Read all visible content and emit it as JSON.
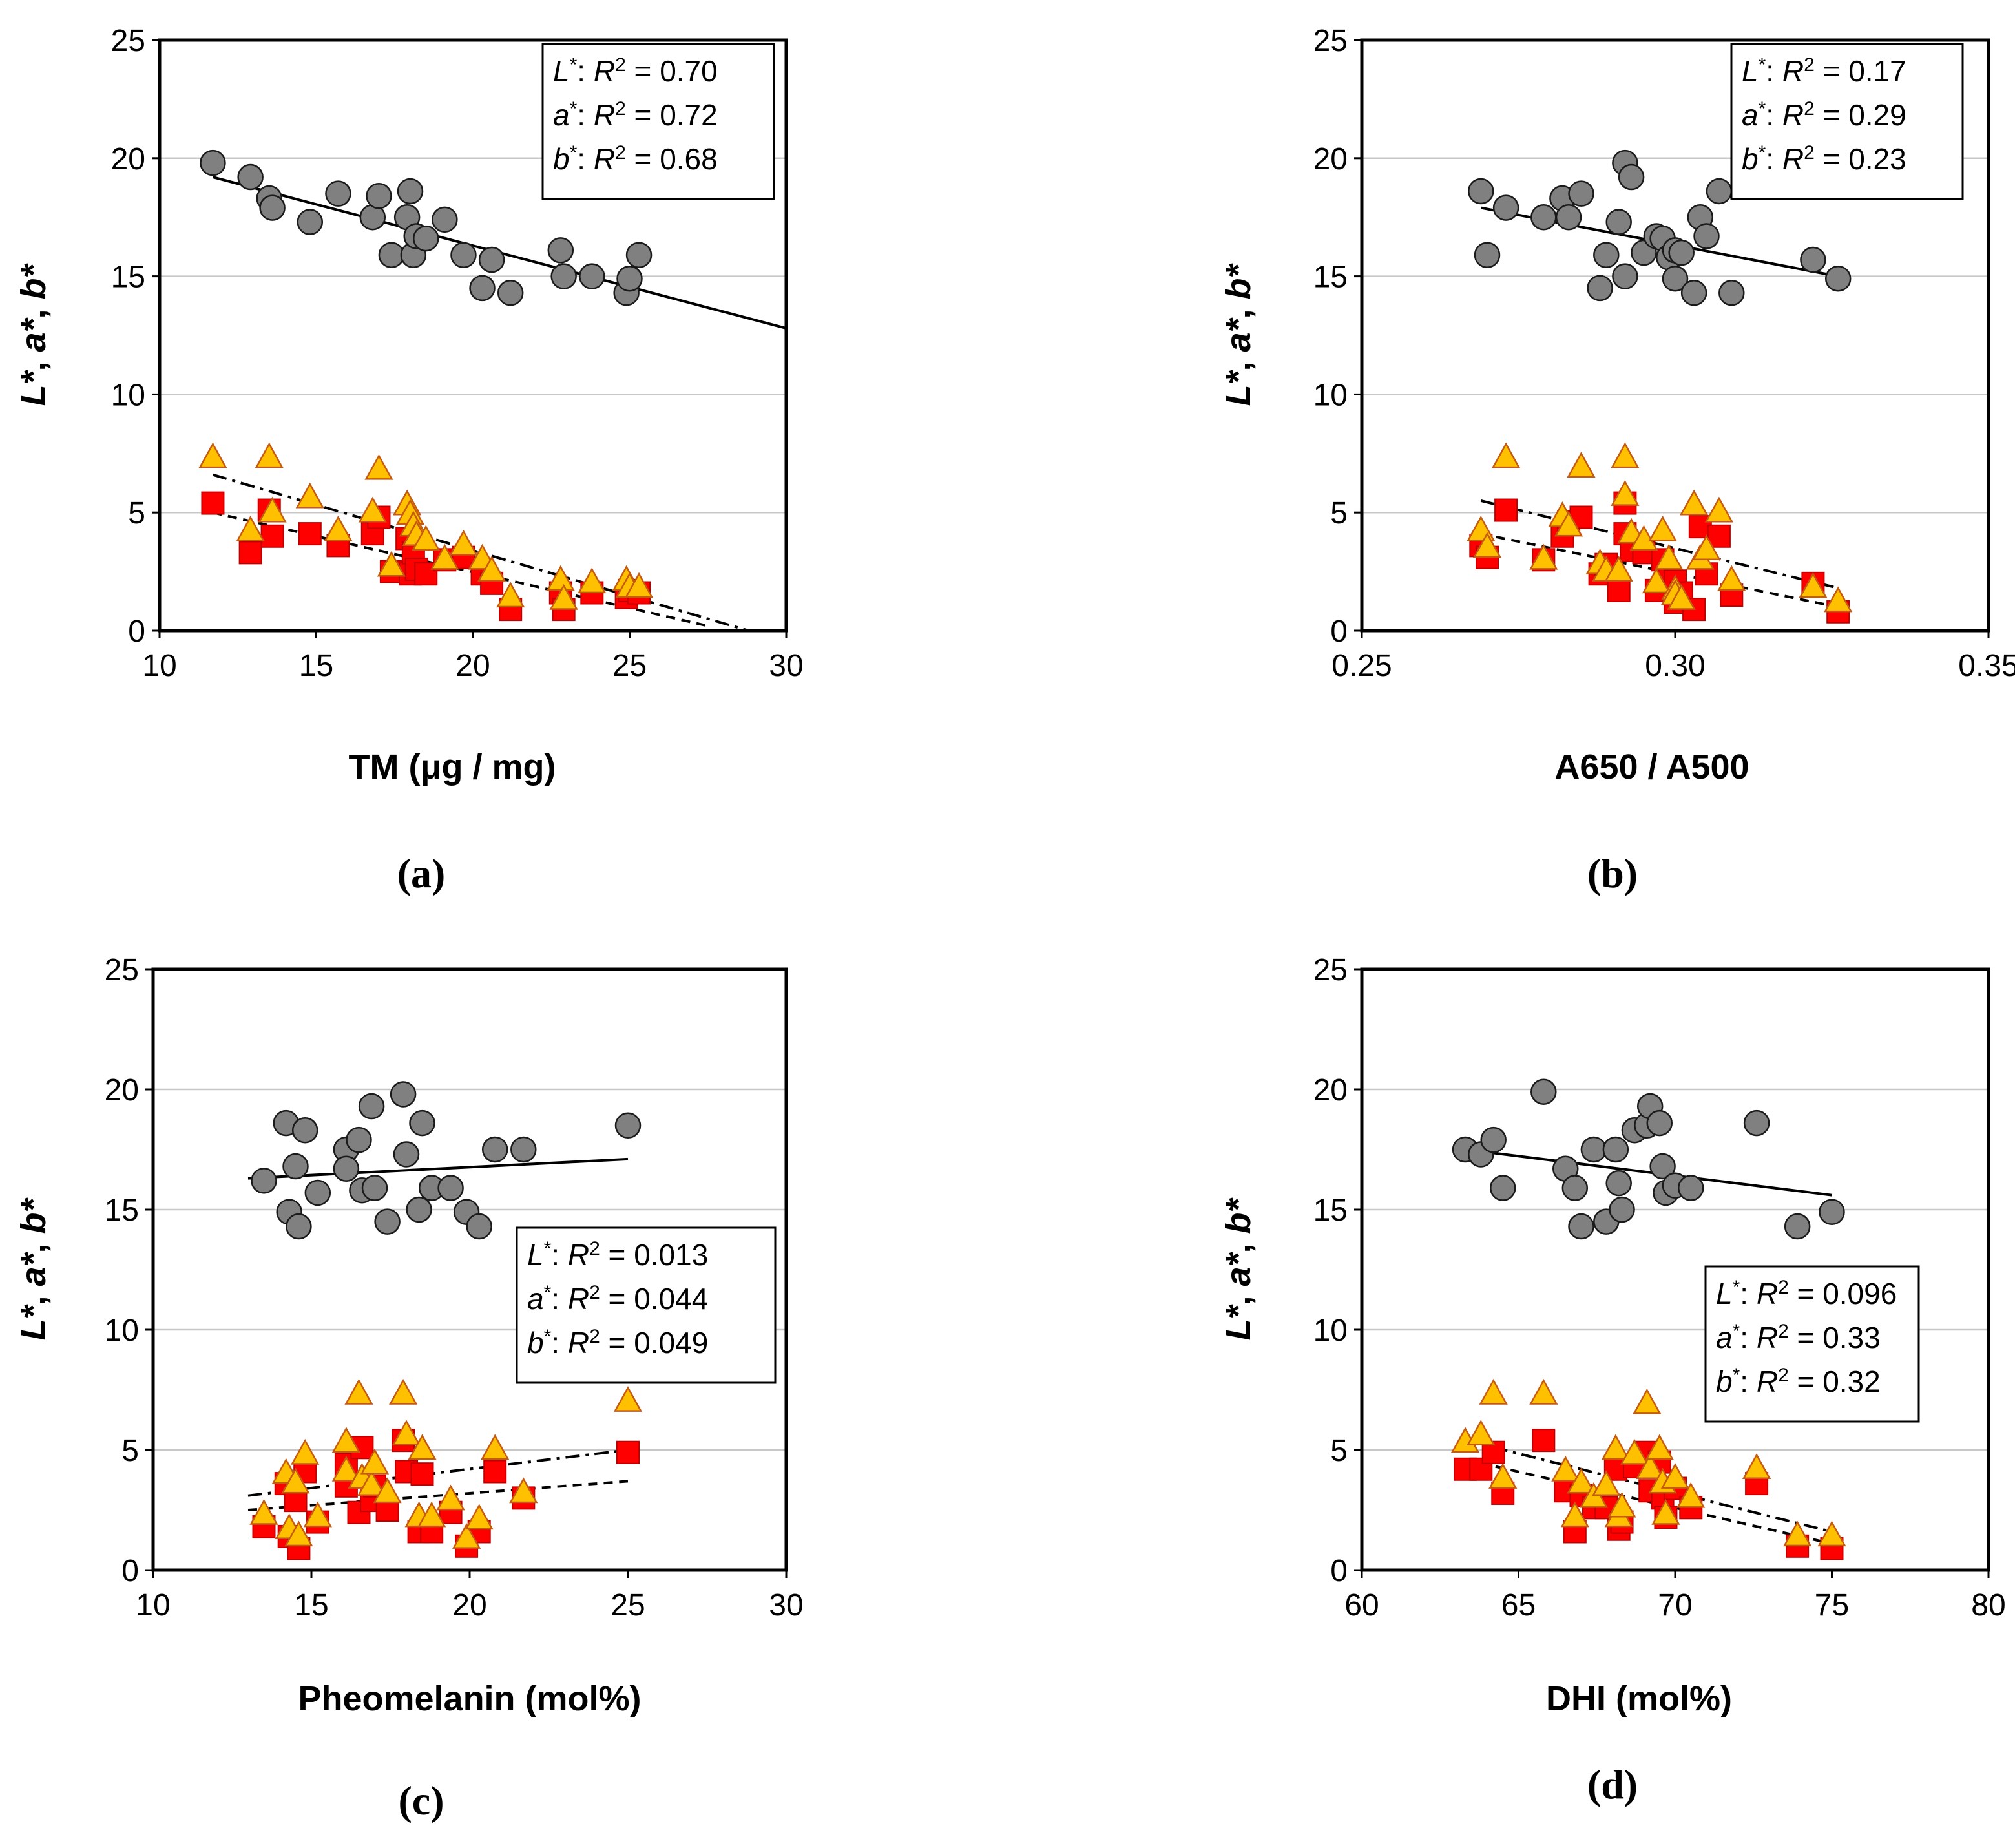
{
  "chart_data": [
    {
      "type": "scatter",
      "panel_label": "(a)",
      "xlabel": "TM (μg / mg)",
      "ylabel": [
        "L*",
        ", ",
        "a*",
        ", ",
        "b*"
      ],
      "xlim": [
        10,
        30
      ],
      "ylim": [
        0,
        25
      ],
      "xticks": [
        "10",
        "15",
        "20",
        "25",
        "30"
      ],
      "yticks": [
        "0",
        "5",
        "10",
        "15",
        "20",
        "25"
      ],
      "legend": [
        {
          "var": "L",
          "r2": "0.70"
        },
        {
          "var": "a",
          "r2": "0.72"
        },
        {
          "var": "b",
          "r2": "0.68"
        }
      ],
      "legend_pos": "top-right",
      "series": [
        {
          "name": "L*",
          "marker": "circle",
          "color": "#808080",
          "x": [
            11.7,
            12.9,
            13.5,
            13.6,
            14.8,
            15.7,
            16.8,
            17.0,
            17.4,
            17.9,
            18.0,
            18.1,
            18.2,
            18.5,
            19.1,
            19.7,
            20.3,
            20.6,
            21.2,
            22.8,
            22.9,
            23.8,
            24.9,
            25.0,
            25.3
          ],
          "y": [
            19.8,
            19.2,
            18.3,
            17.9,
            17.3,
            18.5,
            17.5,
            18.4,
            15.9,
            17.5,
            18.6,
            15.9,
            16.7,
            16.6,
            17.4,
            15.9,
            14.5,
            15.7,
            14.3,
            16.1,
            15.0,
            15.0,
            14.3,
            14.9,
            15.9
          ],
          "fit": [
            [
              11.7,
              19.2
            ],
            [
              30,
              12.8
            ]
          ],
          "fit_style": "solid"
        },
        {
          "name": "a*",
          "marker": "square",
          "color": "#ff0000",
          "x": [
            11.7,
            12.9,
            13.5,
            13.6,
            14.8,
            15.7,
            16.8,
            17.0,
            17.4,
            17.9,
            18.0,
            18.1,
            18.2,
            18.5,
            19.1,
            19.7,
            20.3,
            20.6,
            21.2,
            22.8,
            22.9,
            23.8,
            24.9,
            25.0,
            25.3
          ],
          "y": [
            5.4,
            3.3,
            5.1,
            4.0,
            4.1,
            3.6,
            4.1,
            4.8,
            2.5,
            3.9,
            2.4,
            3.3,
            2.6,
            2.4,
            3.0,
            3.1,
            2.4,
            2.0,
            0.9,
            1.6,
            0.9,
            1.6,
            1.4,
            1.7,
            1.6
          ],
          "fit": [
            [
              11.7,
              5.0
            ],
            [
              27.5,
              0.2
            ]
          ],
          "fit_style": "dashed"
        },
        {
          "name": "b*",
          "marker": "triangle",
          "color": "#ffc000",
          "x": [
            11.7,
            12.9,
            13.5,
            13.6,
            14.8,
            15.7,
            16.8,
            17.0,
            17.4,
            17.9,
            18.0,
            18.1,
            18.2,
            18.5,
            19.1,
            19.7,
            20.3,
            20.6,
            21.2,
            22.8,
            22.9,
            23.8,
            24.9,
            25.0,
            25.3
          ],
          "y": [
            7.3,
            4.2,
            7.3,
            5.0,
            5.6,
            4.2,
            5.0,
            6.8,
            2.7,
            5.3,
            4.9,
            4.4,
            4.0,
            3.8,
            3.0,
            3.6,
            3.0,
            2.5,
            1.4,
            2.1,
            1.3,
            2.0,
            2.1,
            1.8,
            1.8
          ],
          "fit": [
            [
              11.7,
              6.6
            ],
            [
              28.8,
              0
            ]
          ],
          "fit_style": "dashdot"
        }
      ]
    },
    {
      "type": "scatter",
      "panel_label": "(b)",
      "xlabel": "A650 / A500",
      "ylabel": [
        "L*",
        ", ",
        "a*",
        ", ",
        "b*"
      ],
      "xlim": [
        0.25,
        0.35
      ],
      "ylim": [
        0,
        25
      ],
      "xticks": [
        "0.25",
        "0.30",
        "0.35"
      ],
      "yticks": [
        "0",
        "5",
        "10",
        "15",
        "20",
        "25"
      ],
      "legend": [
        {
          "var": "L",
          "r2": "0.17"
        },
        {
          "var": "a",
          "r2": "0.29"
        },
        {
          "var": "b",
          "r2": "0.23"
        }
      ],
      "legend_pos": "top-right",
      "series": [
        {
          "name": "L*",
          "marker": "circle",
          "color": "#808080",
          "x": [
            0.269,
            0.27,
            0.273,
            0.279,
            0.282,
            0.283,
            0.285,
            0.288,
            0.289,
            0.291,
            0.292,
            0.292,
            0.293,
            0.295,
            0.297,
            0.298,
            0.299,
            0.3,
            0.3,
            0.301,
            0.303,
            0.304,
            0.305,
            0.307,
            0.309,
            0.322,
            0.326
          ],
          "y": [
            18.6,
            15.9,
            17.9,
            17.5,
            18.3,
            17.5,
            18.5,
            14.5,
            15.9,
            17.3,
            15.0,
            19.8,
            19.2,
            16.0,
            16.7,
            16.6,
            15.8,
            14.9,
            16.1,
            16.0,
            14.3,
            17.5,
            16.7,
            18.6,
            14.3,
            15.7,
            14.9
          ],
          "fit": [
            [
              0.269,
              17.9
            ],
            [
              0.326,
              15.0
            ]
          ],
          "fit_style": "solid"
        },
        {
          "name": "a*",
          "marker": "square",
          "color": "#ff0000",
          "x": [
            0.269,
            0.27,
            0.273,
            0.279,
            0.282,
            0.283,
            0.285,
            0.288,
            0.289,
            0.291,
            0.292,
            0.292,
            0.293,
            0.295,
            0.297,
            0.298,
            0.299,
            0.3,
            0.3,
            0.301,
            0.303,
            0.304,
            0.305,
            0.307,
            0.309,
            0.322,
            0.326
          ],
          "y": [
            3.6,
            3.1,
            5.1,
            3.0,
            4.0,
            4.6,
            4.8,
            2.4,
            2.8,
            1.7,
            4.1,
            5.4,
            3.4,
            3.3,
            1.7,
            3.0,
            2.3,
            1.2,
            2.1,
            1.6,
            0.9,
            4.4,
            2.4,
            4.0,
            1.5,
            2.0,
            0.8
          ],
          "fit": [
            [
              0.269,
              4.1
            ],
            [
              0.326,
              1.0
            ]
          ],
          "fit_style": "dashed"
        },
        {
          "name": "b*",
          "marker": "triangle",
          "color": "#ffc000",
          "x": [
            0.269,
            0.27,
            0.273,
            0.279,
            0.282,
            0.283,
            0.285,
            0.288,
            0.289,
            0.291,
            0.292,
            0.292,
            0.293,
            0.295,
            0.297,
            0.298,
            0.299,
            0.3,
            0.3,
            0.301,
            0.303,
            0.304,
            0.305,
            0.307,
            0.309,
            0.322,
            0.326
          ],
          "y": [
            4.2,
            3.5,
            7.3,
            3.0,
            4.8,
            4.4,
            6.9,
            2.8,
            2.5,
            2.5,
            5.7,
            7.3,
            4.1,
            3.8,
            2.0,
            4.2,
            3.0,
            1.7,
            1.5,
            1.3,
            5.3,
            3.0,
            3.4,
            5.0,
            2.1,
            1.8,
            1.2
          ],
          "fit": [
            [
              0.269,
              5.5
            ],
            [
              0.326,
              1.8
            ]
          ],
          "fit_style": "dashdot"
        }
      ]
    },
    {
      "type": "scatter",
      "panel_label": "(c)",
      "xlabel": "Pheomelanin (mol%)",
      "ylabel": [
        "L*",
        ", ",
        "a*",
        ", ",
        "b*"
      ],
      "xlim": [
        10,
        30
      ],
      "ylim": [
        0,
        25
      ],
      "xticks": [
        "10",
        "15",
        "20",
        "25",
        "30"
      ],
      "yticks": [
        "0",
        "5",
        "10",
        "15",
        "20",
        "25"
      ],
      "legend": [
        {
          "var": "L",
          "r2": "0.013"
        },
        {
          "var": "a",
          "r2": "0.044"
        },
        {
          "var": "b",
          "r2": "0.049"
        }
      ],
      "legend_pos": "middle-right",
      "series": [
        {
          "name": "L*",
          "marker": "circle",
          "color": "#808080",
          "x": [
            13.5,
            14.2,
            14.3,
            14.5,
            14.6,
            14.8,
            15.2,
            16.1,
            16.1,
            16.5,
            16.6,
            16.9,
            17.0,
            17.4,
            17.9,
            18.0,
            18.4,
            18.5,
            18.8,
            19.4,
            19.9,
            20.3,
            20.8,
            21.7,
            25.0
          ],
          "y": [
            16.2,
            18.6,
            14.9,
            16.8,
            14.3,
            18.3,
            15.7,
            17.5,
            16.7,
            17.9,
            15.8,
            19.3,
            15.9,
            14.5,
            19.8,
            17.3,
            15.0,
            18.6,
            15.9,
            15.9,
            14.9,
            14.3,
            17.5,
            17.5,
            18.5
          ],
          "fit": [
            [
              13.0,
              16.3
            ],
            [
              25.0,
              17.1
            ]
          ],
          "fit_style": "solid"
        },
        {
          "name": "a*",
          "marker": "square",
          "color": "#ff0000",
          "x": [
            13.5,
            14.2,
            14.3,
            14.5,
            14.6,
            14.8,
            15.2,
            16.1,
            16.1,
            16.5,
            16.6,
            16.9,
            17.0,
            17.4,
            17.9,
            18.0,
            18.4,
            18.5,
            18.8,
            19.4,
            19.9,
            20.3,
            20.8,
            21.7,
            25.0
          ],
          "y": [
            1.8,
            3.6,
            1.4,
            2.9,
            0.9,
            4.1,
            2.0,
            4.4,
            3.5,
            2.4,
            5.1,
            2.9,
            3.5,
            2.5,
            5.4,
            4.1,
            1.6,
            4.0,
            1.6,
            2.4,
            1.0,
            1.6,
            4.1,
            3.0,
            4.9
          ],
          "fit": [
            [
              13.0,
              2.5
            ],
            [
              25.0,
              3.7
            ]
          ],
          "fit_style": "dashed"
        },
        {
          "name": "b*",
          "marker": "triangle",
          "color": "#ffc000",
          "x": [
            13.5,
            14.2,
            14.3,
            14.5,
            14.6,
            14.8,
            15.2,
            16.1,
            16.1,
            16.5,
            16.6,
            16.9,
            17.0,
            17.4,
            17.9,
            18.0,
            18.4,
            18.5,
            18.8,
            19.4,
            19.9,
            20.3,
            20.8,
            21.7,
            25.0
          ],
          "y": [
            2.3,
            4.0,
            1.7,
            3.6,
            1.4,
            4.8,
            2.2,
            5.3,
            4.1,
            7.3,
            3.8,
            3.5,
            4.4,
            3.2,
            7.3,
            5.6,
            2.2,
            5.0,
            2.2,
            2.9,
            1.3,
            2.1,
            5.0,
            3.2,
            7.0
          ],
          "fit": [
            [
              13.0,
              3.1
            ],
            [
              25.0,
              5.0
            ]
          ],
          "fit_style": "dashdot"
        }
      ]
    },
    {
      "type": "scatter",
      "panel_label": "(d)",
      "xlabel": "DHI (mol%)",
      "ylabel": [
        "L*",
        ", ",
        "a*",
        ", ",
        "b*"
      ],
      "xlim": [
        60,
        80
      ],
      "ylim": [
        0,
        25
      ],
      "xticks": [
        "60",
        "65",
        "70",
        "75",
        "80"
      ],
      "yticks": [
        "0",
        "5",
        "10",
        "15",
        "20",
        "25"
      ],
      "legend": [
        {
          "var": "L",
          "r2": "0.096"
        },
        {
          "var": "a",
          "r2": "0.33"
        },
        {
          "var": "b",
          "r2": "0.32"
        }
      ],
      "legend_pos": "middle-right",
      "series": [
        {
          "name": "L*",
          "marker": "circle",
          "color": "#808080",
          "x": [
            63.3,
            63.8,
            64.2,
            64.5,
            65.8,
            66.5,
            66.8,
            67.0,
            67.4,
            67.8,
            68.1,
            68.2,
            68.3,
            68.7,
            69.1,
            69.2,
            69.5,
            69.6,
            69.7,
            70.0,
            70.5,
            72.6,
            73.9,
            75.0
          ],
          "y": [
            17.5,
            17.3,
            17.9,
            15.9,
            19.9,
            16.7,
            15.9,
            14.3,
            17.5,
            14.5,
            17.5,
            16.1,
            15.0,
            18.3,
            18.5,
            19.3,
            18.6,
            16.8,
            15.7,
            16.0,
            15.9,
            18.6,
            14.3,
            14.9
          ],
          "fit": [
            [
              63.3,
              17.5
            ],
            [
              75.0,
              15.6
            ]
          ],
          "fit_style": "solid"
        },
        {
          "name": "a*",
          "marker": "square",
          "color": "#ff0000",
          "x": [
            63.3,
            63.8,
            64.2,
            64.5,
            65.8,
            66.5,
            66.8,
            67.0,
            67.4,
            67.8,
            68.1,
            68.2,
            68.3,
            68.7,
            69.1,
            69.2,
            69.5,
            69.6,
            69.7,
            70.0,
            70.5,
            72.6,
            73.9,
            75.0
          ],
          "y": [
            4.2,
            4.2,
            4.9,
            3.2,
            5.4,
            3.3,
            1.6,
            3.1,
            2.6,
            2.6,
            4.2,
            1.7,
            2.0,
            4.3,
            4.9,
            3.3,
            4.5,
            3.0,
            2.2,
            3.4,
            2.6,
            3.6,
            1.0,
            0.9
          ],
          "fit": [
            [
              63.3,
              4.6
            ],
            [
              75.0,
              1.1
            ]
          ],
          "fit_style": "dashed"
        },
        {
          "name": "b*",
          "marker": "triangle",
          "color": "#ffc000",
          "x": [
            63.3,
            63.8,
            64.2,
            64.5,
            65.8,
            66.5,
            66.8,
            67.0,
            67.4,
            67.8,
            68.1,
            68.2,
            68.3,
            68.7,
            69.1,
            69.2,
            69.5,
            69.6,
            69.7,
            70.0,
            70.5,
            72.6,
            73.9,
            75.0
          ],
          "y": [
            5.3,
            5.6,
            7.3,
            3.8,
            7.3,
            4.1,
            2.2,
            3.6,
            3.0,
            3.5,
            5.0,
            2.2,
            2.6,
            4.8,
            6.9,
            4.2,
            5.0,
            3.6,
            2.3,
            3.8,
            3.0,
            4.2,
            1.4,
            1.4
          ],
          "fit": [
            [
              63.3,
              5.4
            ],
            [
              75.0,
              1.6
            ]
          ],
          "fit_style": "dashdot"
        }
      ]
    }
  ]
}
